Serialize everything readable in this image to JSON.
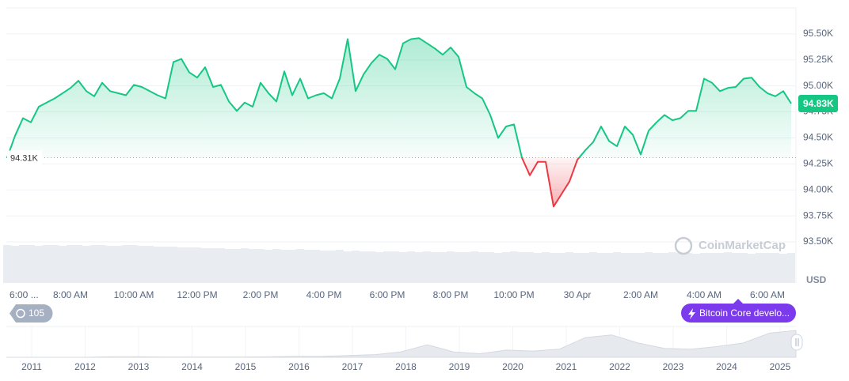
{
  "chart_data": {
    "type": "line",
    "categories": [
      "6:00 ...",
      null,
      null,
      null,
      null,
      null,
      null,
      null,
      "8:00 AM",
      null,
      null,
      null,
      null,
      null,
      null,
      null,
      "10:00 AM",
      null,
      null,
      null,
      null,
      null,
      null,
      null,
      "12:00 PM",
      null,
      null,
      null,
      null,
      null,
      null,
      null,
      "2:00 PM",
      null,
      null,
      null,
      null,
      null,
      null,
      null,
      "4:00 PM",
      null,
      null,
      null,
      null,
      null,
      null,
      null,
      "6:00 PM",
      null,
      null,
      null,
      null,
      null,
      null,
      null,
      "8:00 PM",
      null,
      null,
      null,
      null,
      null,
      null,
      null,
      "10:00 PM",
      null,
      null,
      null,
      null,
      null,
      null,
      null,
      "30 Apr",
      null,
      null,
      null,
      null,
      null,
      null,
      null,
      "2:00 AM",
      null,
      null,
      null,
      null,
      null,
      null,
      null,
      "4:00 AM",
      null,
      null,
      null,
      null,
      null,
      null,
      null,
      "6:00 AM",
      null,
      null,
      null
    ],
    "values": [
      94310,
      94520,
      94690,
      94650,
      94800,
      94840,
      94880,
      94930,
      94980,
      95050,
      94950,
      94900,
      95030,
      94950,
      94930,
      94910,
      95010,
      94990,
      94950,
      94910,
      94880,
      95230,
      95260,
      95130,
      95080,
      95180,
      94990,
      95010,
      94850,
      94760,
      94840,
      94800,
      95030,
      94930,
      94850,
      95140,
      94910,
      95070,
      94880,
      94910,
      94930,
      94880,
      95070,
      95450,
      94950,
      95110,
      95220,
      95300,
      95260,
      95160,
      95410,
      95450,
      95460,
      95410,
      95360,
      95300,
      95370,
      95280,
      94990,
      94930,
      94880,
      94720,
      94500,
      94610,
      94630,
      94310,
      94140,
      94270,
      94270,
      93840,
      93960,
      94080,
      94290,
      94380,
      94460,
      94610,
      94470,
      94420,
      94610,
      94530,
      94340,
      94570,
      94650,
      94720,
      94670,
      94690,
      94760,
      94760,
      95070,
      95030,
      94950,
      94980,
      94990,
      95070,
      95080,
      94990,
      94930,
      94900,
      94950,
      94830
    ],
    "color": "#16c784",
    "negative_color": "#ea3943",
    "ylim": [
      93105,
      95750
    ],
    "yticks": [
      {
        "value": 93500,
        "label": "93.50K"
      },
      {
        "value": 93750,
        "label": "93.75K"
      },
      {
        "value": 94000,
        "label": "94.00K"
      },
      {
        "value": 94250,
        "label": "94.25K"
      },
      {
        "value": 94500,
        "label": "94.50K"
      },
      {
        "value": 94750,
        "label": "94.75K"
      },
      {
        "value": 95000,
        "label": "95.00K"
      },
      {
        "value": 95250,
        "label": "95.25K"
      },
      {
        "value": 95500,
        "label": "95.50K"
      }
    ],
    "grid": true,
    "baseline": {
      "value": 94310,
      "label": "94.31K"
    },
    "last_price": {
      "value": 94830,
      "label": "94.83K"
    },
    "y_unit": "USD",
    "watermark": "CoinMarketCap",
    "volume": [
      48,
      47,
      48,
      48,
      47,
      48,
      48,
      47,
      48,
      48,
      47,
      48,
      48,
      47,
      47,
      48,
      48,
      47,
      47,
      46,
      46,
      46,
      45,
      45,
      45,
      44,
      44,
      44,
      43,
      43,
      44,
      43,
      43,
      42,
      43,
      42,
      42,
      43,
      42,
      42,
      41,
      41,
      42,
      40,
      41,
      40,
      40,
      39,
      40,
      40,
      39,
      40,
      39,
      40,
      39,
      39,
      40,
      39,
      39,
      40,
      39,
      39,
      38,
      39,
      40,
      39,
      39,
      38,
      39,
      38,
      38,
      39,
      38,
      38,
      39,
      38,
      38,
      39,
      38,
      38,
      38,
      39,
      38,
      38,
      39,
      38,
      38,
      37,
      38,
      38,
      38,
      39,
      38,
      38,
      37,
      38,
      38,
      38,
      37,
      38
    ]
  },
  "controls": {
    "history_count": 105,
    "news_pill": "Bitcoin Core develo..."
  },
  "navigator": {
    "years": [
      2011,
      2012,
      2013,
      2014,
      2015,
      2016,
      2017,
      2018,
      2019,
      2020,
      2021,
      2022,
      2023,
      2024,
      2025
    ],
    "values": [
      0,
      0,
      0,
      0,
      0.5,
      0.5,
      0.3,
      0.3,
      0.3,
      0.3,
      0.5,
      1,
      1,
      2,
      3,
      6,
      14,
      6,
      4,
      8,
      7,
      9,
      22,
      25,
      16,
      10,
      9,
      12,
      16,
      27,
      30
    ]
  }
}
